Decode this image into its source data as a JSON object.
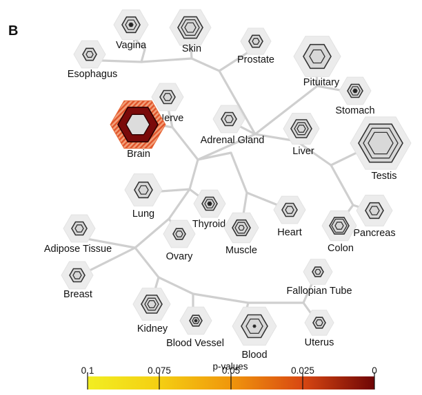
{
  "panel_letter": "B",
  "tissues": [
    {
      "id": "vagina",
      "label": "Vagina",
      "p": 0.1
    },
    {
      "id": "skin",
      "label": "Skin",
      "p": 0.1
    },
    {
      "id": "prostate",
      "label": "Prostate",
      "p": 0.1
    },
    {
      "id": "esophagus",
      "label": "Esophagus",
      "p": 0.1
    },
    {
      "id": "pituitary",
      "label": "Pituitary",
      "p": 0.1
    },
    {
      "id": "stomach",
      "label": "Stomach",
      "p": 0.1
    },
    {
      "id": "nerve",
      "label": "Nerve",
      "p": 0.1
    },
    {
      "id": "brain",
      "label": "Brain",
      "p": 0.0
    },
    {
      "id": "adrenal-gland",
      "label": "Adrenal Gland",
      "p": 0.1
    },
    {
      "id": "liver",
      "label": "Liver",
      "p": 0.1
    },
    {
      "id": "testis",
      "label": "Testis",
      "p": 0.1
    },
    {
      "id": "lung",
      "label": "Lung",
      "p": 0.1
    },
    {
      "id": "thyroid",
      "label": "Thyroid",
      "p": 0.1
    },
    {
      "id": "heart",
      "label": "Heart",
      "p": 0.1
    },
    {
      "id": "pancreas",
      "label": "Pancreas",
      "p": 0.1
    },
    {
      "id": "adipose-tissue",
      "label": "Adipose Tissue",
      "p": 0.1
    },
    {
      "id": "ovary",
      "label": "Ovary",
      "p": 0.1
    },
    {
      "id": "muscle",
      "label": "Muscle",
      "p": 0.1
    },
    {
      "id": "colon",
      "label": "Colon",
      "p": 0.1
    },
    {
      "id": "breast",
      "label": "Breast",
      "p": 0.1
    },
    {
      "id": "fallopian-tube",
      "label": "Fallopian Tube",
      "p": 0.1
    },
    {
      "id": "kidney",
      "label": "Kidney",
      "p": 0.1
    },
    {
      "id": "blood-vessel",
      "label": "Blood Vessel",
      "p": 0.1
    },
    {
      "id": "blood",
      "label": "Blood",
      "p": 0.1
    },
    {
      "id": "uterus",
      "label": "Uterus",
      "p": 0.1
    }
  ],
  "legend": {
    "title": "p-values",
    "ticks": [
      "0.1",
      "0.075",
      "0.05",
      "0.025",
      "0"
    ],
    "range": [
      0.1,
      0
    ],
    "colors": [
      "#f2ee22",
      "#f4c20d",
      "#ef8f0c",
      "#d84712",
      "#7a0707"
    ]
  },
  "colors": {
    "branch": "#cfcfcf",
    "hex_outer": "#ececec",
    "hex_fill": "#d8d8d8",
    "hex_stroke": "#333333",
    "brain_fill": "#7a0a0a",
    "brain_stripe": "#e86a3a"
  }
}
